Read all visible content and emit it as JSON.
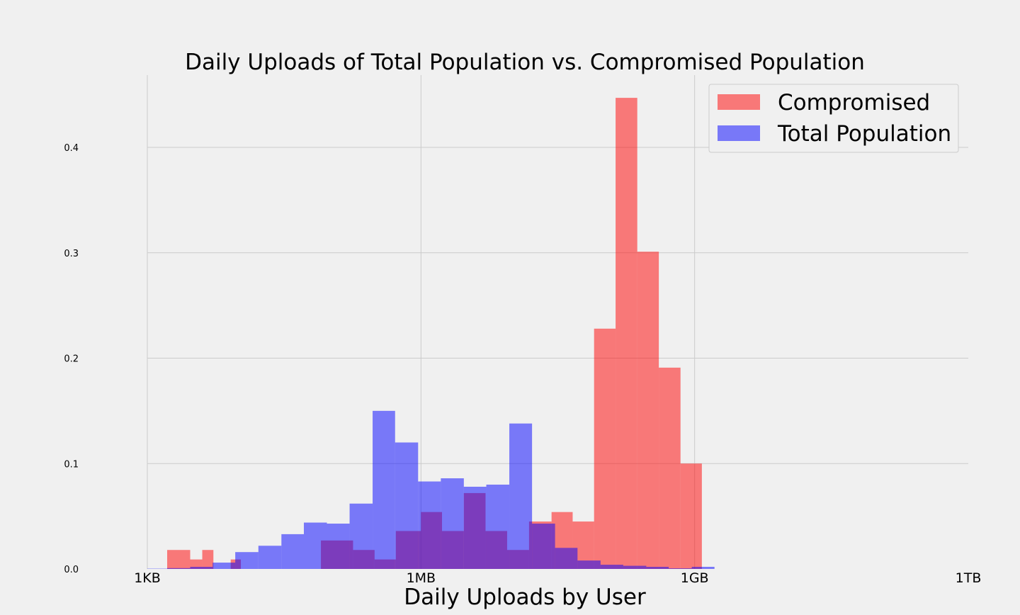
{
  "chart_data": {
    "type": "bar",
    "title": "Daily Uploads of Total Population vs. Compromised Population",
    "xlabel": "Daily Uploads by User",
    "ylabel": "",
    "x_scale": "log",
    "x_unit": "bytes",
    "xlim": [
      1000,
      1000000000000
    ],
    "ylim": [
      0,
      0.4
    ],
    "x_ticks": [
      {
        "value": 1000,
        "label": "1KB"
      },
      {
        "value": 1000000,
        "label": "1MB"
      },
      {
        "value": 1000000000,
        "label": "1GB"
      },
      {
        "value": 1000000000000,
        "label": "1TB"
      }
    ],
    "y_ticks": [
      {
        "value": 0.0,
        "label": "0.0"
      },
      {
        "value": 0.1,
        "label": "0.1"
      },
      {
        "value": 0.2,
        "label": "0.2"
      },
      {
        "value": 0.3,
        "label": "0.3"
      },
      {
        "value": 0.4,
        "label": "0.4"
      }
    ],
    "grid": true,
    "legend": {
      "position": "top-right"
    },
    "series": [
      {
        "name": "Compromised",
        "color": "#ff0000",
        "opacity": 0.5,
        "bins": [
          {
            "x0": 1650,
            "x1": 2950,
            "y": 0.018
          },
          {
            "x0": 2950,
            "x1": 4000,
            "y": 0.009
          },
          {
            "x0": 4000,
            "x1": 5300,
            "y": 0.018
          },
          {
            "x0": 8200,
            "x1": 10600,
            "y": 0.009
          },
          {
            "x0": 80000,
            "x1": 180000,
            "y": 0.027
          },
          {
            "x0": 180000,
            "x1": 310000,
            "y": 0.018
          },
          {
            "x0": 310000,
            "x1": 530000,
            "y": 0.009
          },
          {
            "x0": 530000,
            "x1": 1000000,
            "y": 0.036
          },
          {
            "x0": 1000000,
            "x1": 1700000,
            "y": 0.054
          },
          {
            "x0": 1700000,
            "x1": 2950000,
            "y": 0.036
          },
          {
            "x0": 2950000,
            "x1": 5100000,
            "y": 0.072
          },
          {
            "x0": 5100000,
            "x1": 8800000,
            "y": 0.036
          },
          {
            "x0": 8800000,
            "x1": 15300000,
            "y": 0.018
          },
          {
            "x0": 15300000,
            "x1": 27000000,
            "y": 0.045
          },
          {
            "x0": 27000000,
            "x1": 46000000,
            "y": 0.054
          },
          {
            "x0": 46000000,
            "x1": 79000000,
            "y": 0.045
          },
          {
            "x0": 79000000,
            "x1": 136000000,
            "y": 0.228
          },
          {
            "x0": 136000000,
            "x1": 235000000,
            "y": 0.447
          },
          {
            "x0": 235000000,
            "x1": 405000000,
            "y": 0.301
          },
          {
            "x0": 405000000,
            "x1": 700000000,
            "y": 0.191
          },
          {
            "x0": 700000000,
            "x1": 1200000000,
            "y": 0.1
          }
        ]
      },
      {
        "name": "Total Population",
        "color": "#0000ff",
        "opacity": 0.5,
        "bins": [
          {
            "x0": 1000,
            "x1": 1650,
            "y": 0.0003
          },
          {
            "x0": 1650,
            "x1": 2950,
            "y": 0.0008
          },
          {
            "x0": 2950,
            "x1": 5200,
            "y": 0.002
          },
          {
            "x0": 5200,
            "x1": 9200,
            "y": 0.006
          },
          {
            "x0": 9200,
            "x1": 16500,
            "y": 0.016
          },
          {
            "x0": 16500,
            "x1": 29500,
            "y": 0.022
          },
          {
            "x0": 29500,
            "x1": 52000,
            "y": 0.033
          },
          {
            "x0": 52000,
            "x1": 93000,
            "y": 0.044
          },
          {
            "x0": 93000,
            "x1": 165000,
            "y": 0.043
          },
          {
            "x0": 165000,
            "x1": 295000,
            "y": 0.062
          },
          {
            "x0": 295000,
            "x1": 520000,
            "y": 0.15
          },
          {
            "x0": 520000,
            "x1": 930000,
            "y": 0.12
          },
          {
            "x0": 930000,
            "x1": 1650000,
            "y": 0.083
          },
          {
            "x0": 1650000,
            "x1": 2950000,
            "y": 0.086
          },
          {
            "x0": 2950000,
            "x1": 5200000,
            "y": 0.078
          },
          {
            "x0": 5200000,
            "x1": 9300000,
            "y": 0.08
          },
          {
            "x0": 9300000,
            "x1": 16500000,
            "y": 0.138
          },
          {
            "x0": 16500000,
            "x1": 29500000,
            "y": 0.043
          },
          {
            "x0": 29500000,
            "x1": 52000000,
            "y": 0.02
          },
          {
            "x0": 52000000,
            "x1": 93000000,
            "y": 0.008
          },
          {
            "x0": 93000000,
            "x1": 165000000,
            "y": 0.004
          },
          {
            "x0": 165000000,
            "x1": 295000000,
            "y": 0.003
          },
          {
            "x0": 295000000,
            "x1": 520000000,
            "y": 0.002
          },
          {
            "x0": 520000000,
            "x1": 930000000,
            "y": 0.0006
          },
          {
            "x0": 930000000,
            "x1": 1650000000,
            "y": 0.002
          }
        ]
      }
    ]
  }
}
